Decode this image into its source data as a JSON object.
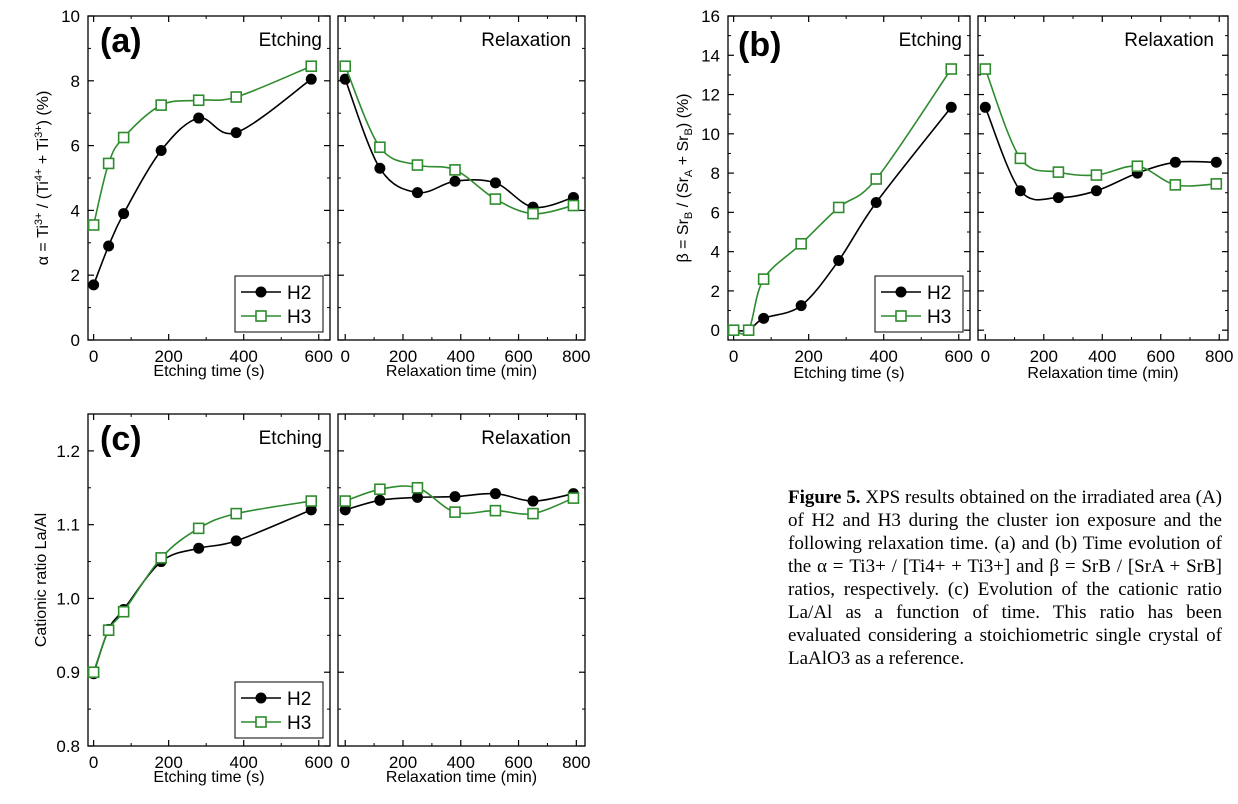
{
  "colors": {
    "h2": "#000000",
    "h3": "#2e8b2e",
    "axis": "#000000"
  },
  "chart_data": [
    {
      "type": "line",
      "panel": "(a)",
      "ylabel": "α = Ti3+ / (Ti4+ + Ti3+) (%)",
      "ylabel_parts": {
        "pre": "α = Ti",
        "sup1": "3+",
        "mid": " / (Ti",
        "sup2": "4+",
        "mid2": " + Ti",
        "sup3": "3+",
        "post": ") (%)"
      },
      "ylim": [
        0,
        10
      ],
      "yticks": [
        0,
        2,
        4,
        6,
        8,
        10
      ],
      "left": {
        "label": "Etching",
        "xlabel": "Etching time (s)",
        "xlim": [
          -15,
          630
        ],
        "xticks": [
          0,
          200,
          400,
          600
        ]
      },
      "right": {
        "label": "Relaxation",
        "xlabel": "Relaxation time (min)",
        "xlim": [
          -25,
          830
        ],
        "xticks": [
          0,
          200,
          400,
          600,
          800
        ]
      },
      "legend": [
        "H2",
        "H3"
      ],
      "legend_position": "bottom-right of Etching panel",
      "series": [
        {
          "name": "H2",
          "marker": "filled-circle",
          "etching": {
            "x": [
              0,
              40,
              80,
              180,
              280,
              380,
              580
            ],
            "y": [
              1.7,
              2.9,
              3.9,
              5.85,
              6.85,
              6.4,
              8.05
            ]
          },
          "relaxation": {
            "x": [
              0,
              120,
              250,
              380,
              520,
              650,
              790
            ],
            "y": [
              8.05,
              5.3,
              4.55,
              4.9,
              4.85,
              4.1,
              4.4
            ]
          }
        },
        {
          "name": "H3",
          "marker": "open-square",
          "etching": {
            "x": [
              0,
              40,
              80,
              180,
              280,
              380,
              580
            ],
            "y": [
              3.55,
              5.45,
              6.25,
              7.25,
              7.4,
              7.5,
              8.45
            ]
          },
          "relaxation": {
            "x": [
              0,
              120,
              250,
              380,
              520,
              650,
              790
            ],
            "y": [
              8.45,
              5.95,
              5.4,
              5.25,
              4.35,
              3.9,
              4.15
            ]
          }
        }
      ]
    },
    {
      "type": "line",
      "panel": "(b)",
      "ylabel": "β = SrB / (SrA + SrB) (%)",
      "ylabel_parts": {
        "pre": "β = Sr",
        "sub1": "B",
        "mid": " / (Sr",
        "sub2": "A",
        "mid2": " + Sr",
        "sub3": "B",
        "post": ") (%)"
      },
      "ylim": [
        -0.5,
        16
      ],
      "yticks": [
        0,
        2,
        4,
        6,
        8,
        10,
        12,
        14,
        16
      ],
      "left": {
        "label": "Etching",
        "xlabel": "Etching time (s)",
        "xlim": [
          -15,
          630
        ],
        "xticks": [
          0,
          200,
          400,
          600
        ]
      },
      "right": {
        "label": "Relaxation",
        "xlabel": "Relaxation time (min)",
        "xlim": [
          -25,
          830
        ],
        "xticks": [
          0,
          200,
          400,
          600,
          800
        ]
      },
      "legend": [
        "H2",
        "H3"
      ],
      "legend_position": "bottom-right of Etching panel",
      "series": [
        {
          "name": "H2",
          "marker": "filled-circle",
          "etching": {
            "x": [
              0,
              40,
              80,
              180,
              280,
              380,
              580
            ],
            "y": [
              0,
              0,
              0.6,
              1.25,
              3.55,
              6.5,
              11.35
            ]
          },
          "relaxation": {
            "x": [
              0,
              120,
              250,
              380,
              520,
              650,
              790
            ],
            "y": [
              11.35,
              7.1,
              6.75,
              7.1,
              8.0,
              8.55,
              8.55
            ]
          }
        },
        {
          "name": "H3",
          "marker": "open-square",
          "etching": {
            "x": [
              0,
              40,
              80,
              180,
              280,
              380,
              580
            ],
            "y": [
              0,
              0,
              2.6,
              4.4,
              6.25,
              7.7,
              13.3
            ]
          },
          "relaxation": {
            "x": [
              0,
              120,
              250,
              380,
              520,
              650,
              790
            ],
            "y": [
              13.3,
              8.75,
              8.05,
              7.9,
              8.35,
              7.4,
              7.45
            ]
          }
        }
      ]
    },
    {
      "type": "line",
      "panel": "(c)",
      "ylabel": "Cationic ratio La/Al",
      "ylim": [
        0.8,
        1.25
      ],
      "yticks": [
        0.8,
        0.9,
        1.0,
        1.1,
        1.2
      ],
      "yticklabels": [
        "0.8",
        "0.9",
        "1.0",
        "1.1",
        "1.2"
      ],
      "left": {
        "label": "Etching",
        "xlabel": "Etching time (s)",
        "xlim": [
          -15,
          630
        ],
        "xticks": [
          0,
          200,
          400,
          600
        ]
      },
      "right": {
        "label": "Relaxation",
        "xlabel": "Relaxation time (min)",
        "xlim": [
          -25,
          830
        ],
        "xticks": [
          0,
          200,
          400,
          600,
          800
        ]
      },
      "legend": [
        "H2",
        "H3"
      ],
      "legend_position": "bottom-right of Etching panel",
      "series": [
        {
          "name": "H2",
          "marker": "filled-circle",
          "etching": {
            "x": [
              0,
              40,
              80,
              180,
              280,
              380,
              580
            ],
            "y": [
              0.898,
              0.958,
              0.985,
              1.05,
              1.068,
              1.078,
              1.12
            ]
          },
          "relaxation": {
            "x": [
              0,
              120,
              250,
              380,
              520,
              650,
              790
            ],
            "y": [
              1.12,
              1.133,
              1.137,
              1.138,
              1.142,
              1.132,
              1.142
            ]
          }
        },
        {
          "name": "H3",
          "marker": "open-square",
          "etching": {
            "x": [
              0,
              40,
              80,
              180,
              280,
              380,
              580
            ],
            "y": [
              0.9,
              0.957,
              0.982,
              1.055,
              1.095,
              1.115,
              1.132
            ]
          },
          "relaxation": {
            "x": [
              0,
              120,
              250,
              380,
              520,
              650,
              790
            ],
            "y": [
              1.132,
              1.148,
              1.15,
              1.117,
              1.119,
              1.115,
              1.136
            ]
          }
        }
      ]
    }
  ],
  "caption": {
    "figure_label": "Figure 5.",
    "text": " XPS results obtained on the irradiated area (A) of H2 and H3 during the cluster ion exposure and the following relaxation time. (a) and (b) Time evolution of the α = Ti3+ / [Ti4+ + Ti3+] and β = SrB / [SrA + SrB] ratios, respectively. (c) Evolution of the cationic ratio La/Al as a function of time. This ratio has been evaluated considering a stoichiometric single crystal of LaAlO3 as a reference."
  }
}
